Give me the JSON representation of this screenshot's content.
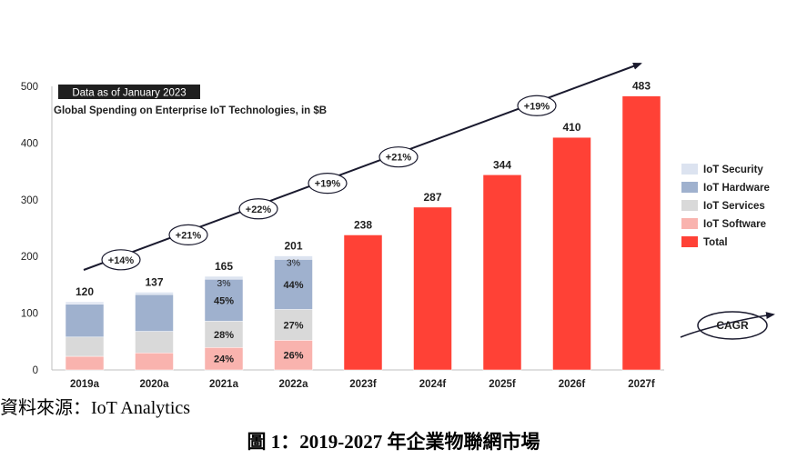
{
  "chart_data": {
    "type": "bar",
    "badge": "Data as of January 2023",
    "title": "Global Spending on Enterprise IoT Technologies, in $B",
    "categories": [
      "2019a",
      "2020a",
      "2021a",
      "2022a",
      "2023f",
      "2024f",
      "2025f",
      "2026f",
      "2027f"
    ],
    "totals": [
      120,
      137,
      165,
      201,
      238,
      287,
      344,
      410,
      483
    ],
    "ylim": [
      0,
      500
    ],
    "yticks": [
      0,
      100,
      200,
      300,
      400,
      500
    ],
    "series": [
      {
        "name": "IoT Software",
        "color": "#F9B3AE",
        "values": [
          24,
          30,
          39.6,
          52.3,
          0,
          0,
          0,
          0,
          0
        ],
        "labels": [
          "",
          "",
          "24%",
          "26%",
          "",
          "",
          "",
          "",
          ""
        ]
      },
      {
        "name": "IoT Services",
        "color": "#D9D9D9",
        "values": [
          34,
          38,
          46.2,
          54.3,
          0,
          0,
          0,
          0,
          0
        ],
        "labels": [
          "",
          "",
          "28%",
          "27%",
          "",
          "",
          "",
          "",
          ""
        ]
      },
      {
        "name": "IoT Hardware",
        "color": "#9FB1CE",
        "values": [
          58,
          65,
          74.2,
          88.4,
          0,
          0,
          0,
          0,
          0
        ],
        "labels": [
          "",
          "",
          "45%",
          "44%",
          "",
          "",
          "",
          "",
          ""
        ]
      },
      {
        "name": "IoT Security",
        "color": "#DCE3F0",
        "values": [
          4,
          4,
          5,
          6,
          0,
          0,
          0,
          0,
          0
        ],
        "labels": [
          "",
          "",
          "3%",
          "3%",
          "",
          "",
          "",
          "",
          ""
        ]
      },
      {
        "name": "Total",
        "color": "#FF4136",
        "values": [
          0,
          0,
          0,
          0,
          238,
          287,
          344,
          410,
          483
        ],
        "labels": [
          "",
          "",
          "",
          "",
          "",
          "",
          "",
          "",
          ""
        ]
      }
    ],
    "growth": [
      "+14%",
      "+21%",
      "+22%",
      "+19%",
      "+21%",
      "+19%"
    ],
    "cagr_label": "CAGR",
    "legend_position": "right",
    "grid": false
  },
  "captions": {
    "source": "資料來源：IoT Analytics",
    "figure": "圖 1：2019-2027 年企業物聯網市場"
  },
  "colors": {
    "text": "#1F1F1F",
    "trend": "#1A1A2E",
    "badge_bg": "#1F1F1F",
    "badge_text": "#FFFFFF",
    "total": "#FF4136"
  }
}
